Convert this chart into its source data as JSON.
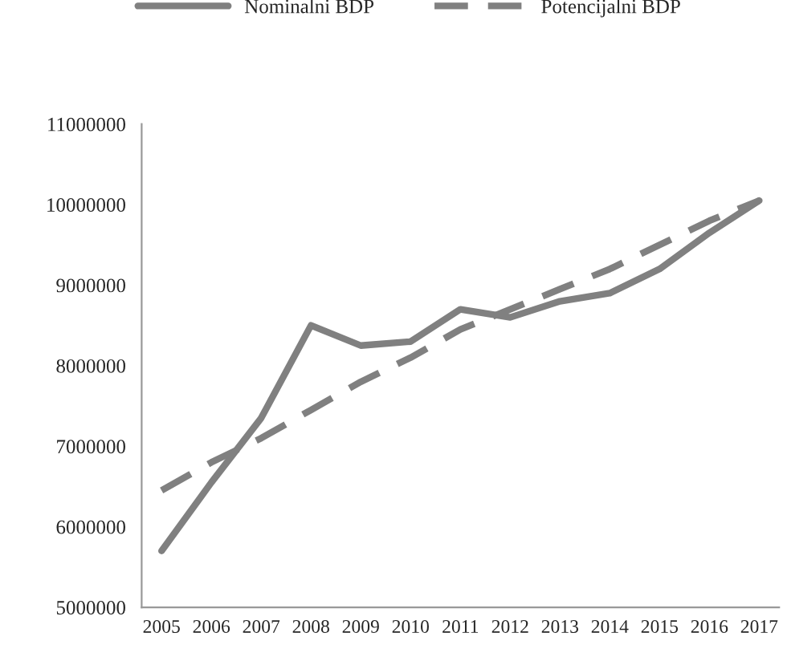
{
  "chart_data": {
    "type": "line",
    "categories": [
      "2005",
      "2006",
      "2007",
      "2008",
      "2009",
      "2010",
      "2011",
      "2012",
      "2013",
      "2014",
      "2015",
      "2016",
      "2017"
    ],
    "series": [
      {
        "name": "Nominalni BDP",
        "color": "#808080",
        "line_style": "solid",
        "values": [
          5700000,
          6550000,
          7350000,
          8500000,
          8250000,
          8300000,
          8700000,
          8600000,
          8800000,
          8900000,
          9200000,
          9650000,
          10050000
        ]
      },
      {
        "name": "Potencijalni BDP",
        "color": "#808080",
        "line_style": "dashed",
        "values": [
          6450000,
          6800000,
          7100000,
          7450000,
          7800000,
          8100000,
          8450000,
          8700000,
          8950000,
          9200000,
          9500000,
          9800000,
          10050000
        ]
      }
    ],
    "ylim": [
      5000000,
      11000000
    ],
    "yticks": [
      5000000,
      6000000,
      7000000,
      8000000,
      9000000,
      10000000,
      11000000
    ],
    "grid": false,
    "legend": "top",
    "marker": "none"
  }
}
